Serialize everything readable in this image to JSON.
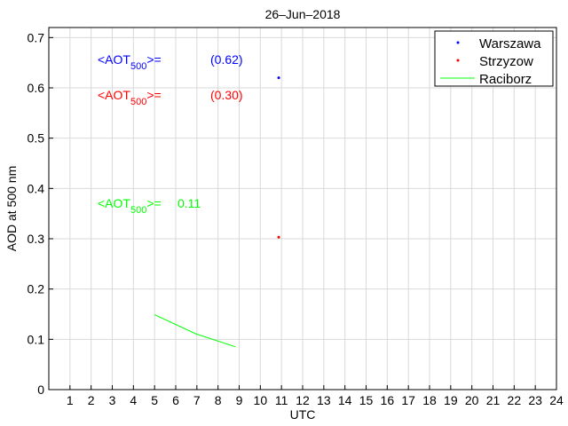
{
  "chart_data": {
    "type": "line",
    "title": "26–Jun–2018",
    "xlabel": "UTC",
    "ylabel": "AOD at 500 nm",
    "xlim": [
      0,
      24
    ],
    "ylim": [
      0,
      0.72
    ],
    "xticks": [
      "1",
      "2",
      "3",
      "4",
      "5",
      "6",
      "7",
      "8",
      "9",
      "10",
      "11",
      "12",
      "13",
      "14",
      "15",
      "16",
      "17",
      "18",
      "19",
      "20",
      "21",
      "22",
      "23",
      "24"
    ],
    "yticks": [
      "0",
      "0.1",
      "0.2",
      "0.3",
      "0.4",
      "0.5",
      "0.6",
      "0.7"
    ],
    "grid": true,
    "legend_position": "top-right",
    "series": [
      {
        "name": "Warszawa",
        "style": "point",
        "color": "#0000ff",
        "x": [
          10.87
        ],
        "y": [
          0.62
        ]
      },
      {
        "name": "Strzyzow",
        "style": "point",
        "color": "#ff0000",
        "x": [
          10.87
        ],
        "y": [
          0.303
        ]
      },
      {
        "name": "Raciborz",
        "style": "line",
        "color": "#00ff00",
        "x": [
          5.0,
          6.95,
          8.83
        ],
        "y": [
          0.149,
          0.111,
          0.085
        ]
      }
    ],
    "annotations": [
      {
        "prefix": "<AOT",
        "sub": "500",
        "suffix": ">=",
        "value": "(0.62)",
        "color": "#0000ff"
      },
      {
        "prefix": "<AOT",
        "sub": "500",
        "suffix": ">=",
        "value": "(0.30)",
        "color": "#ff0000"
      },
      {
        "prefix": "<AOT",
        "sub": "500",
        "suffix": ">=",
        "value": "0.11",
        "color": "#00ff00"
      }
    ]
  }
}
